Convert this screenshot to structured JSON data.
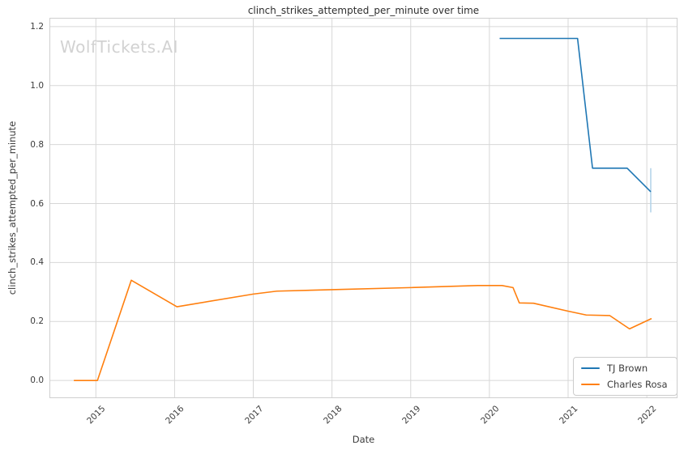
{
  "watermark": "WolfTickets.AI",
  "chart_data": {
    "type": "line",
    "title": "clinch_strikes_attempted_per_minute over time",
    "xlabel": "Date",
    "ylabel": "clinch_strikes_attempted_per_minute",
    "xlim": [
      2014.41,
      2022.39
    ],
    "ylim": [
      -0.06,
      1.23
    ],
    "grid": true,
    "legend_position": "lower right",
    "x_ticks": [
      {
        "value": 2015,
        "label": "2015"
      },
      {
        "value": 2016,
        "label": "2016"
      },
      {
        "value": 2017,
        "label": "2017"
      },
      {
        "value": 2018,
        "label": "2018"
      },
      {
        "value": 2019,
        "label": "2019"
      },
      {
        "value": 2020,
        "label": "2020"
      },
      {
        "value": 2021,
        "label": "2021"
      },
      {
        "value": 2022,
        "label": "2022"
      }
    ],
    "y_ticks": [
      {
        "value": 0.0,
        "label": "0.0"
      },
      {
        "value": 0.2,
        "label": "0.2"
      },
      {
        "value": 0.4,
        "label": "0.4"
      },
      {
        "value": 0.6,
        "label": "0.6"
      },
      {
        "value": 0.8,
        "label": "0.8"
      },
      {
        "value": 1.0,
        "label": "1.0"
      },
      {
        "value": 1.2,
        "label": "1.2"
      }
    ],
    "series": [
      {
        "name": "TJ Brown",
        "color": "#1f77b4",
        "x": [
          2020.13,
          2021.12,
          2021.31,
          2021.75,
          2022.05
        ],
        "y": [
          1.16,
          1.16,
          0.72,
          0.72,
          0.64
        ],
        "error_bar": {
          "x": 2022.05,
          "y_low": 0.57,
          "y_high": 0.72,
          "color": "#b5d4ea"
        }
      },
      {
        "name": "Charles Rosa",
        "color": "#ff7f0e",
        "x": [
          2014.72,
          2015.02,
          2015.45,
          2016.03,
          2017.0,
          2017.3,
          2018.0,
          2019.0,
          2019.85,
          2020.16,
          2020.3,
          2020.38,
          2020.56,
          2021.0,
          2021.23,
          2021.53,
          2021.78,
          2022.06
        ],
        "y": [
          0.0,
          0.0,
          0.34,
          0.25,
          0.293,
          0.303,
          0.308,
          0.315,
          0.322,
          0.322,
          0.315,
          0.263,
          0.262,
          0.235,
          0.222,
          0.22,
          0.175,
          0.21
        ]
      }
    ]
  }
}
